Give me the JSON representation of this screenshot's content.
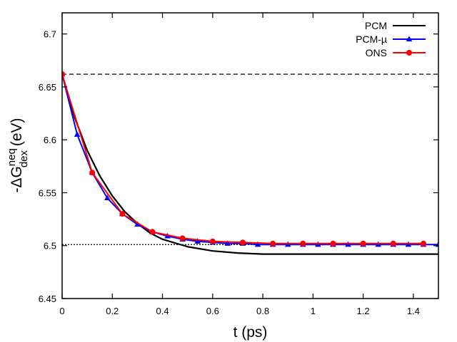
{
  "chart_data": {
    "type": "line",
    "title": "",
    "xlabel": "t (ps)",
    "ylabel": {
      "base": "-ΔG",
      "sup": "neq",
      "sub": "dex",
      "unit": " (eV)"
    },
    "xlim": [
      0,
      1.5
    ],
    "ylim": [
      6.45,
      6.72
    ],
    "xticks": [
      0,
      0.2,
      0.4,
      0.6,
      0.8,
      1,
      1.2,
      1.4
    ],
    "xtick_labels": [
      "0",
      "0.2",
      "0.4",
      "0.6",
      "0.8",
      "1",
      "1.2",
      "1.4"
    ],
    "yticks": [
      6.45,
      6.5,
      6.55,
      6.6,
      6.65,
      6.7
    ],
    "ytick_labels": [
      "6.45",
      "6.5",
      "6.55",
      "6.6",
      "6.65",
      "6.7"
    ],
    "grid": false,
    "legend_position": "top-right",
    "series": [
      {
        "name": "PCM",
        "color": "#000000",
        "marker": "none",
        "x": [
          0,
          0.05,
          0.1,
          0.15,
          0.2,
          0.25,
          0.3,
          0.35,
          0.4,
          0.5,
          0.6,
          0.7,
          0.8,
          0.9,
          1.0,
          1.2,
          1.4,
          1.5
        ],
        "y": [
          6.662,
          6.621,
          6.59,
          6.566,
          6.547,
          6.532,
          6.521,
          6.512,
          6.506,
          6.499,
          6.495,
          6.493,
          6.492,
          6.492,
          6.492,
          6.492,
          6.492,
          6.492
        ]
      },
      {
        "name": "PCM-µ",
        "color": "#0000ff",
        "marker": "triangle",
        "x": [
          0,
          0.06,
          0.12,
          0.18,
          0.24,
          0.3,
          0.36,
          0.42,
          0.48,
          0.54,
          0.6,
          0.66,
          0.72,
          0.78,
          0.84,
          0.9,
          0.96,
          1.02,
          1.08,
          1.14,
          1.2,
          1.26,
          1.32,
          1.38,
          1.44,
          1.5
        ],
        "y": [
          6.662,
          6.605,
          6.569,
          6.545,
          6.53,
          6.52,
          6.513,
          6.509,
          6.506,
          6.504,
          6.503,
          6.502,
          6.502,
          6.501,
          6.501,
          6.501,
          6.501,
          6.501,
          6.501,
          6.501,
          6.501,
          6.501,
          6.501,
          6.501,
          6.501,
          6.501
        ]
      },
      {
        "name": "ONS",
        "color": "#ff0000",
        "marker": "circle",
        "x": [
          0,
          0.12,
          0.24,
          0.36,
          0.48,
          0.6,
          0.72,
          0.84,
          0.96,
          1.08,
          1.2,
          1.32,
          1.44
        ],
        "y": [
          6.662,
          6.569,
          6.53,
          6.513,
          6.507,
          6.504,
          6.503,
          6.502,
          6.502,
          6.502,
          6.502,
          6.502,
          6.502
        ]
      }
    ],
    "reference_lines": [
      {
        "name": "initial-dashed",
        "y": 6.662,
        "style": "dashed"
      },
      {
        "name": "final-dotted",
        "y": 6.501,
        "style": "dotted"
      }
    ]
  }
}
